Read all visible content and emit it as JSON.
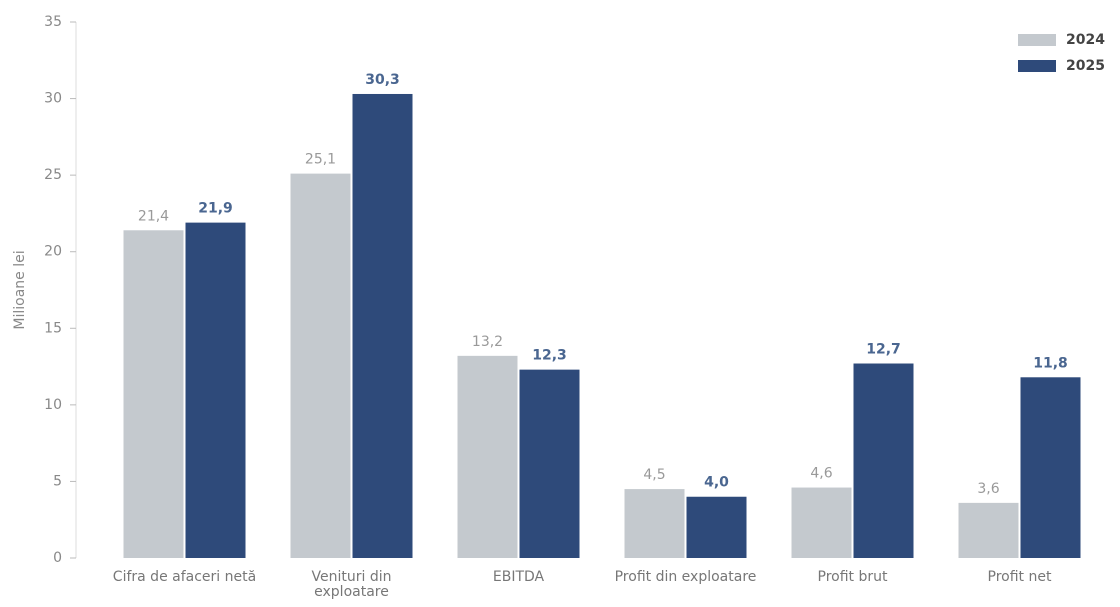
{
  "chart_data": {
    "type": "bar",
    "y_label": "Milioane lei",
    "categories": [
      "Cifra de afaceri netă",
      "Venituri din exploatare",
      "EBITDA",
      "Profit din exploatare",
      "Profit brut",
      "Profit net"
    ],
    "series": [
      {
        "name": "2024",
        "color": "#c4c9ce",
        "values": [
          21.4,
          25.1,
          13.2,
          4.5,
          4.6,
          3.6
        ],
        "value_labels": [
          "21,4",
          "25,1",
          "13,2",
          "4,5",
          "4,6",
          "3,6"
        ]
      },
      {
        "name": "2025",
        "color": "#2e4a7a",
        "values": [
          21.9,
          30.3,
          12.3,
          4.0,
          12.7,
          11.8
        ],
        "value_labels": [
          "21,9",
          "30,3",
          "12,3",
          "4,0",
          "12,7",
          "11,8"
        ]
      }
    ],
    "ylim": [
      0,
      35
    ],
    "yticks": [
      0,
      5,
      10,
      15,
      20,
      25,
      30,
      35
    ],
    "legend": "top-right",
    "grid": false
  }
}
